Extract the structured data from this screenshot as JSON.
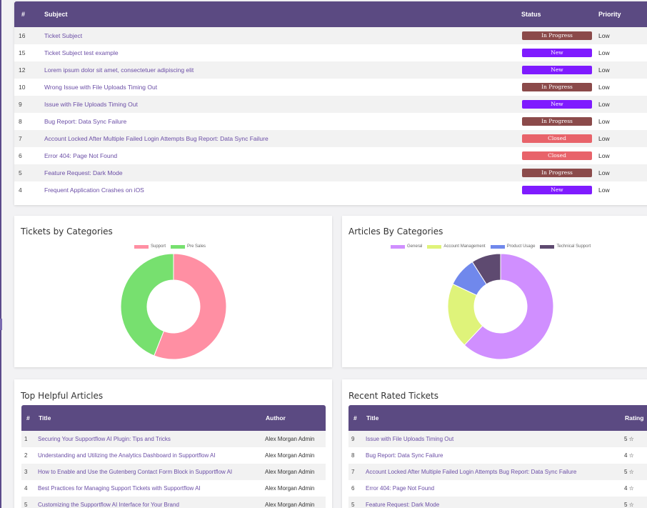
{
  "tickets": {
    "headers": {
      "id": "#",
      "subject": "Subject",
      "status": "Status",
      "priority": "Priority"
    },
    "rows": [
      {
        "id": "16",
        "subject": "Ticket Subject",
        "status": "In Progress",
        "priority": "Low"
      },
      {
        "id": "15",
        "subject": "Ticket Subject test example",
        "status": "New",
        "priority": "Low"
      },
      {
        "id": "12",
        "subject": "Lorem ipsum dolor sit amet, consectetuer adipiscing elit",
        "status": "New",
        "priority": "Low"
      },
      {
        "id": "10",
        "subject": "Wrong Issue with File Uploads Timing Out",
        "status": "In Progress",
        "priority": "Low"
      },
      {
        "id": "9",
        "subject": "Issue with File Uploads Timing Out",
        "status": "New",
        "priority": "Low"
      },
      {
        "id": "8",
        "subject": "Bug Report: Data Sync Failure",
        "status": "In Progress",
        "priority": "Low"
      },
      {
        "id": "7",
        "subject": "Account Locked After Multiple Failed Login Attempts Bug Report: Data Sync Failure",
        "status": "Closed",
        "priority": "Low"
      },
      {
        "id": "6",
        "subject": "Error 404: Page Not Found",
        "status": "Closed",
        "priority": "Low"
      },
      {
        "id": "5",
        "subject": "Feature Request: Dark Mode",
        "status": "In Progress",
        "priority": "Low"
      },
      {
        "id": "4",
        "subject": "Frequent Application Crashes on iOS",
        "status": "New",
        "priority": "Low"
      }
    ],
    "status_colors": {
      "In Progress": "#8b4a4a",
      "New": "#7f1bff",
      "Closed": "#e8636a"
    }
  },
  "chart_data": [
    {
      "type": "pie",
      "title": "Tickets by Categories",
      "categories": [
        "Support",
        "Pre Sales"
      ],
      "values": [
        56,
        44
      ],
      "colors": [
        "#ff8fa3",
        "#77e06f"
      ],
      "legend": "top"
    },
    {
      "type": "pie",
      "title": "Articles By Categories",
      "categories": [
        "General",
        "Account Management",
        "Product Usage",
        "Technical Support"
      ],
      "values": [
        62,
        20,
        9,
        9
      ],
      "colors": [
        "#d08fff",
        "#dff37a",
        "#7088ec",
        "#5e4a70"
      ],
      "legend": "top"
    }
  ],
  "top_articles": {
    "title": "Top Helpful Articles",
    "headers": {
      "id": "#",
      "title": "Title",
      "author": "Author"
    },
    "rows": [
      {
        "id": "1",
        "title": "Securing Your Supportflow AI Plugin: Tips and Tricks",
        "author": "Alex Morgan Admin"
      },
      {
        "id": "2",
        "title": "Understanding and Utilizing the Analytics Dashboard in Supportflow AI",
        "author": "Alex Morgan Admin"
      },
      {
        "id": "3",
        "title": "How to Enable and Use the Gutenberg Contact Form Block in Supportflow AI",
        "author": "Alex Morgan Admin"
      },
      {
        "id": "4",
        "title": "Best Practices for Managing Support Tickets with Supportflow AI",
        "author": "Alex Morgan Admin"
      },
      {
        "id": "5",
        "title": "Customizing the Supportflow AI Interface for Your Brand",
        "author": "Alex Morgan Admin"
      }
    ]
  },
  "rated_tickets": {
    "title": "Recent Rated Tickets",
    "headers": {
      "id": "#",
      "title": "Title",
      "rating": "Rating"
    },
    "rows": [
      {
        "id": "9",
        "title": "Issue with File Uploads Timing Out",
        "rating": "5 ☆"
      },
      {
        "id": "8",
        "title": "Bug Report: Data Sync Failure",
        "rating": "4 ☆"
      },
      {
        "id": "7",
        "title": "Account Locked After Multiple Failed Login Attempts Bug Report: Data Sync Failure",
        "rating": "5 ☆"
      },
      {
        "id": "6",
        "title": "Error 404: Page Not Found",
        "rating": "4 ☆"
      },
      {
        "id": "5",
        "title": "Feature Request: Dark Mode",
        "rating": "5 ☆"
      }
    ]
  }
}
